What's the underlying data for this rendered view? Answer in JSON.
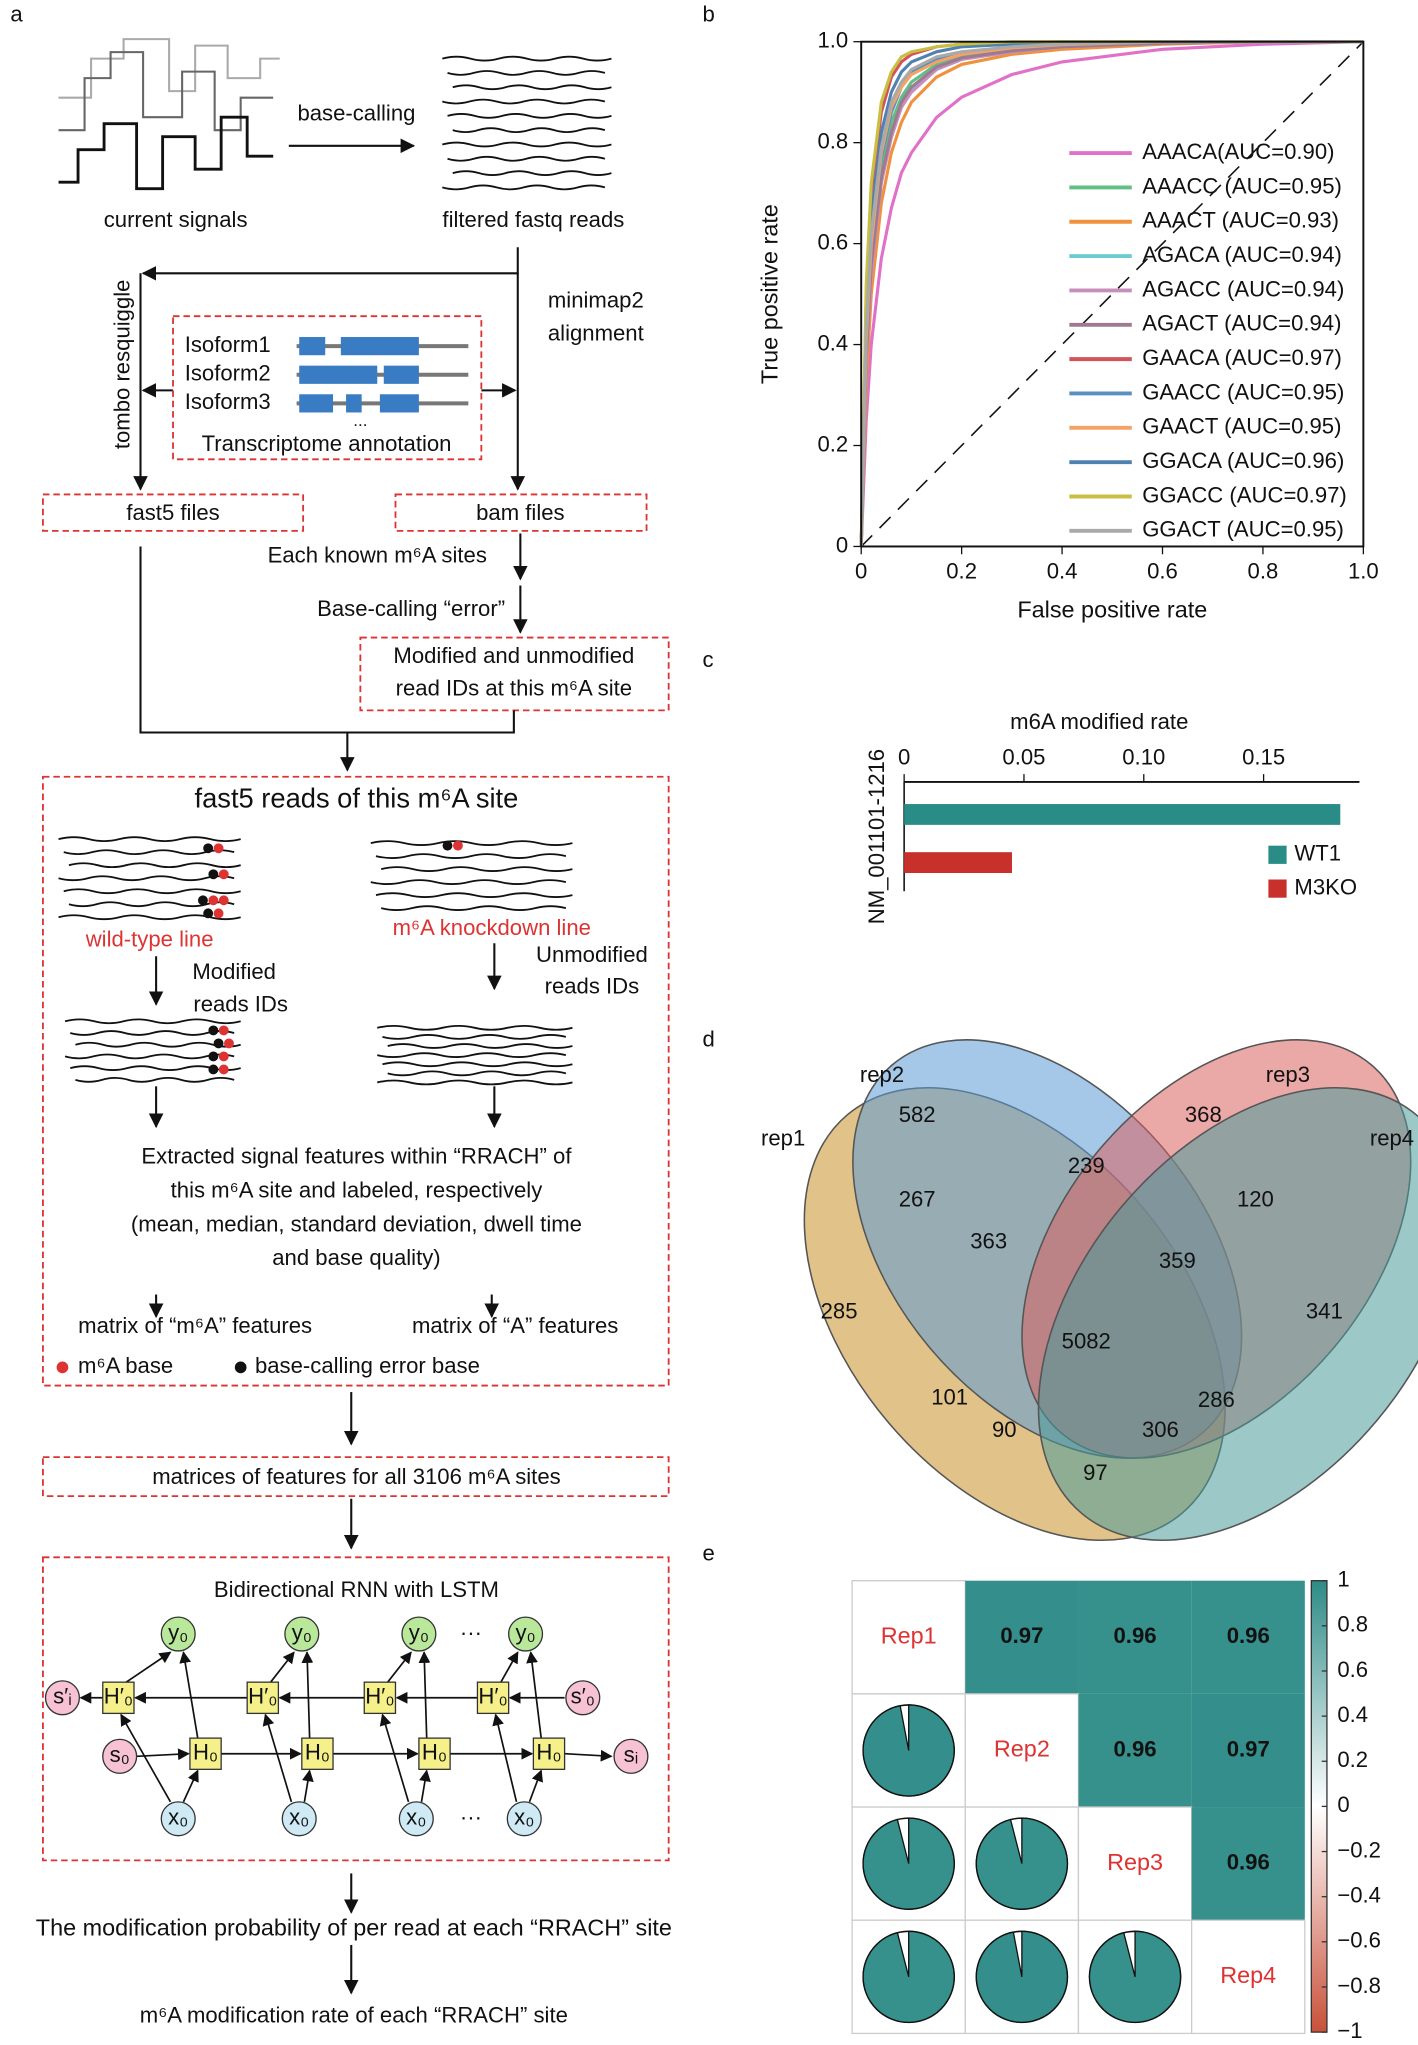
{
  "panel_labels": [
    "a",
    "b",
    "c",
    "d",
    "e"
  ],
  "diagram": {
    "signals_label": "current signals",
    "basecalling": "base-calling",
    "reads_label": "filtered fastq reads",
    "resquiggle": "tombo resquiggle",
    "alignment": [
      "minimap2",
      "alignment"
    ],
    "isoforms": [
      "Isoform1",
      "Isoform2",
      "Isoform3"
    ],
    "ellipsis": "...",
    "annotation": "Transcriptome annotation",
    "fast5": "fast5 files",
    "bam": "bam files",
    "known_sites": "Each known m⁶A sites",
    "error": "Base-calling “error”",
    "read_ids": [
      "Modified and unmodified",
      "read IDs at this m⁶A site"
    ],
    "box_title": "fast5 reads of this m⁶A site",
    "wild_type": "wild-type line",
    "knockdown": "m⁶A knockdown line",
    "modified": [
      "Modified",
      "reads IDs"
    ],
    "unmodified": [
      "Unmodified",
      "reads IDs"
    ],
    "features": [
      "Extracted signal features within “RRACH” of",
      "this m⁶A site and labeled, respectively",
      "(mean, median, standard deviation, dwell time",
      "and base quality)"
    ],
    "matrix_m6a": "matrix of “m⁶A” features",
    "matrix_a": "matrix of “A” features",
    "legend": [
      "m⁶A base",
      "base-calling error base"
    ],
    "matrices": "matrices of features for all 3106 m⁶A sites",
    "rnn_title": "Bidirectional RNN with LSTM",
    "nodes": {
      "y": "y₀",
      "h_back": "H′₀",
      "h": "H₀",
      "x": "x₀",
      "s_back_i": "s′ᵢ",
      "s_0": "s₀",
      "s_i": "sᵢ",
      "s_back_0": "s′₀",
      "dots": "···"
    },
    "probability": "The modification probability of per read at each “RRACH” site",
    "rate": "m⁶A modification rate of each “RRACH” site"
  },
  "chart_data": [
    {
      "type": "line",
      "xlabel": "False positive rate",
      "ylabel": "True positive rate",
      "xlim": [
        0,
        1
      ],
      "ylim": [
        0,
        1
      ],
      "xticks": [
        0,
        0.2,
        0.4,
        0.6,
        0.8,
        {
          "value": 1,
          "label": "1.0"
        }
      ],
      "yticks": [
        0,
        0.2,
        0.4,
        0.6,
        0.8,
        {
          "value": 1,
          "label": "1.0"
        }
      ],
      "legend": "lower right",
      "x": [
        0,
        0.01,
        0.02,
        0.04,
        0.06,
        0.08,
        0.1,
        0.15,
        0.2,
        0.3,
        0.4,
        0.6,
        0.8,
        1
      ],
      "series": [
        {
          "name": "AAACA(AUC=0.90)",
          "color": "#e070c8",
          "values": [
            0,
            0.25,
            0.4,
            0.57,
            0.67,
            0.74,
            0.78,
            0.85,
            0.89,
            0.935,
            0.96,
            0.985,
            0.995,
            1
          ]
        },
        {
          "name": "AAACC (AUC=0.95)",
          "color": "#62bf84",
          "values": [
            0,
            0.4,
            0.58,
            0.75,
            0.84,
            0.89,
            0.92,
            0.955,
            0.97,
            0.985,
            0.99,
            0.997,
            1,
            1
          ]
        },
        {
          "name": "AAACT (AUC=0.93)",
          "color": "#f0913e",
          "values": [
            0,
            0.32,
            0.5,
            0.68,
            0.78,
            0.84,
            0.88,
            0.93,
            0.955,
            0.975,
            0.985,
            0.995,
            1,
            1
          ]
        },
        {
          "name": "AGACA (AUC=0.94)",
          "color": "#6ccbd2",
          "values": [
            0,
            0.38,
            0.55,
            0.72,
            0.82,
            0.87,
            0.905,
            0.945,
            0.965,
            0.98,
            0.99,
            0.997,
            1,
            1
          ]
        },
        {
          "name": "AGACC (AUC=0.94)",
          "color": "#c58fbc",
          "values": [
            0,
            0.37,
            0.54,
            0.72,
            0.81,
            0.87,
            0.9,
            0.945,
            0.965,
            0.98,
            0.99,
            0.997,
            1,
            1
          ]
        },
        {
          "name": "AGACT (AUC=0.94)",
          "color": "#9e7a92",
          "values": [
            0,
            0.38,
            0.56,
            0.73,
            0.82,
            0.88,
            0.91,
            0.95,
            0.968,
            0.982,
            0.99,
            0.997,
            1,
            1
          ]
        },
        {
          "name": "GAACA (AUC=0.97)",
          "color": "#d2545a",
          "values": [
            0,
            0.5,
            0.7,
            0.86,
            0.93,
            0.96,
            0.975,
            0.99,
            0.995,
            0.998,
            1,
            1,
            1,
            1
          ]
        },
        {
          "name": "GAACC (AUC=0.95)",
          "color": "#5a8fc0",
          "values": [
            0,
            0.42,
            0.6,
            0.77,
            0.86,
            0.91,
            0.94,
            0.965,
            0.978,
            0.99,
            0.995,
            1,
            1,
            1
          ]
        },
        {
          "name": "GAACT (AUC=0.95)",
          "color": "#f4a266",
          "values": [
            0,
            0.41,
            0.6,
            0.78,
            0.87,
            0.91,
            0.935,
            0.96,
            0.975,
            0.988,
            0.994,
            1,
            1,
            1
          ]
        },
        {
          "name": "GGACA (AUC=0.96)",
          "color": "#4f82b0",
          "values": [
            0,
            0.46,
            0.65,
            0.82,
            0.9,
            0.94,
            0.96,
            0.98,
            0.99,
            0.995,
            1,
            1,
            1,
            1
          ]
        },
        {
          "name": "GGACC (AUC=0.97)",
          "color": "#c9c043",
          "values": [
            0,
            0.52,
            0.72,
            0.88,
            0.94,
            0.97,
            0.98,
            0.99,
            0.995,
            1,
            1,
            1,
            1,
            1
          ]
        },
        {
          "name": "GGACT (AUC=0.95)",
          "color": "#a9a9a9",
          "values": [
            0,
            0.43,
            0.62,
            0.79,
            0.88,
            0.92,
            0.945,
            0.97,
            0.98,
            0.99,
            0.995,
            1,
            1,
            1
          ]
        }
      ]
    },
    {
      "type": "barh",
      "title": "m6A modified rate",
      "categories": [
        "NM_001101-1216"
      ],
      "xlim": [
        0,
        0.19
      ],
      "xticks": [
        0,
        0.05,
        {
          "value": 0.1,
          "label": "0.10"
        },
        0.15
      ],
      "legend": "lower right",
      "series": [
        {
          "name": "WT1",
          "color": "#2a8c86",
          "values": [
            0.182
          ]
        },
        {
          "name": "M3KO",
          "color": "#c8312b",
          "values": [
            0.045
          ]
        }
      ]
    },
    {
      "type": "venn",
      "sets": [
        {
          "name": "rep1",
          "color": "#c8912a"
        },
        {
          "name": "rep2",
          "color": "#5b9bd5"
        },
        {
          "name": "rep3",
          "color": "#d9605e"
        },
        {
          "name": "rep4",
          "color": "#4a9a9a"
        }
      ],
      "values": [
        582,
        368,
        267,
        239,
        120,
        285,
        363,
        359,
        341,
        5082,
        101,
        286,
        90,
        306,
        97
      ]
    },
    {
      "type": "correlation",
      "labels": [
        "Rep1",
        "Rep2",
        "Rep3",
        "Rep4"
      ],
      "matrix": [
        [
          null,
          0.97,
          0.96,
          0.96
        ],
        [
          0.97,
          null,
          0.96,
          0.97
        ],
        [
          0.96,
          0.96,
          null,
          0.96
        ],
        [
          0.96,
          0.97,
          0.96,
          null
        ]
      ],
      "clim": [
        -1,
        1
      ],
      "colormap": [
        "#c8513a",
        "#ffffff",
        "#2e8b87"
      ],
      "cticks": [
        {
          "value": -1,
          "label": "−1"
        },
        {
          "value": -0.8,
          "label": "−0.8"
        },
        {
          "value": -0.6,
          "label": "−0.6"
        },
        {
          "value": -0.4,
          "label": "−0.4"
        },
        {
          "value": -0.2,
          "label": "−0.2"
        },
        0,
        0.2,
        0.4,
        0.6,
        0.8,
        1
      ]
    }
  ]
}
